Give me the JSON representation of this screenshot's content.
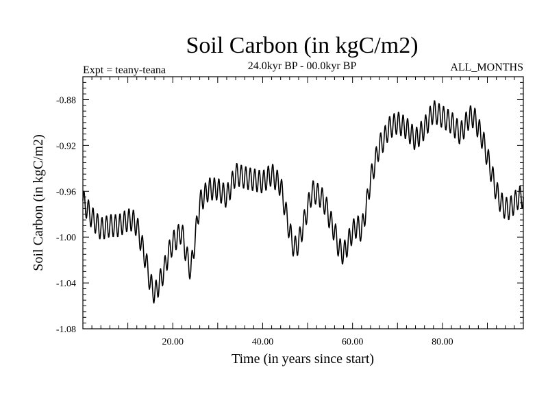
{
  "chart_data": {
    "type": "line",
    "title": "Soil Carbon (in kgC/m2)",
    "subtitle": "24.0kyr BP - 00.0kyr BP",
    "left_note": "Expt = teany-teana",
    "right_note": "ALL_MONTHS",
    "xlabel": "Time (in years since start)",
    "ylabel": "Soil Carbon (in kgC/m2)",
    "xlim": [
      0,
      98
    ],
    "ylim": [
      -1.08,
      -0.86
    ],
    "xticks": [
      20,
      40,
      60,
      80
    ],
    "xtick_labels": [
      "20.00",
      "40.00",
      "60.00",
      "80.00"
    ],
    "yticks": [
      -0.88,
      -0.92,
      -0.96,
      -1.0,
      -1.04,
      -1.08
    ],
    "ytick_labels": [
      "-0.88",
      "-0.92",
      "-0.96",
      "-1.00",
      "-1.04",
      "-1.08"
    ],
    "line_color": "#000000",
    "series": [
      {
        "name": "Soil Carbon",
        "trend_x": [
          0,
          2,
          4,
          6,
          8,
          10,
          11,
          12,
          13,
          14,
          15,
          16,
          17,
          18,
          19,
          20,
          21,
          22,
          23,
          24,
          25,
          26,
          28,
          30,
          32,
          34,
          36,
          38,
          40,
          42,
          44,
          45,
          46,
          47,
          48,
          49,
          50,
          51,
          52,
          53,
          54,
          55,
          56,
          57,
          58,
          59,
          60,
          61,
          62,
          63,
          64,
          65,
          66,
          67,
          68,
          70,
          72,
          74,
          76,
          78,
          80,
          82,
          84,
          86,
          87,
          88,
          89,
          90,
          91,
          92,
          93,
          94,
          95,
          96,
          97,
          98
        ],
        "trend_y": [
          -0.968,
          -0.983,
          -0.993,
          -0.99,
          -0.99,
          -0.985,
          -0.985,
          -0.99,
          -1.005,
          -1.02,
          -1.04,
          -1.05,
          -1.04,
          -1.03,
          -1.015,
          -1.005,
          -1.0,
          -0.995,
          -1.015,
          -1.03,
          -1.0,
          -0.97,
          -0.958,
          -0.958,
          -0.965,
          -0.945,
          -0.948,
          -0.95,
          -0.952,
          -0.945,
          -0.955,
          -0.975,
          -0.995,
          -1.01,
          -1.005,
          -0.99,
          -0.975,
          -0.96,
          -0.962,
          -0.965,
          -0.972,
          -0.985,
          -0.995,
          -1.01,
          -1.015,
          -1.005,
          -0.995,
          -0.99,
          -0.995,
          -0.975,
          -0.95,
          -0.935,
          -0.92,
          -0.915,
          -0.905,
          -0.9,
          -0.905,
          -0.915,
          -0.905,
          -0.89,
          -0.895,
          -0.9,
          -0.91,
          -0.895,
          -0.895,
          -0.905,
          -0.915,
          -0.93,
          -0.945,
          -0.96,
          -0.97,
          -0.975,
          -0.975,
          -0.97,
          -0.965,
          -0.965
        ],
        "oscillation_amplitude": 0.01,
        "oscillation_period": 1.0
      }
    ]
  }
}
